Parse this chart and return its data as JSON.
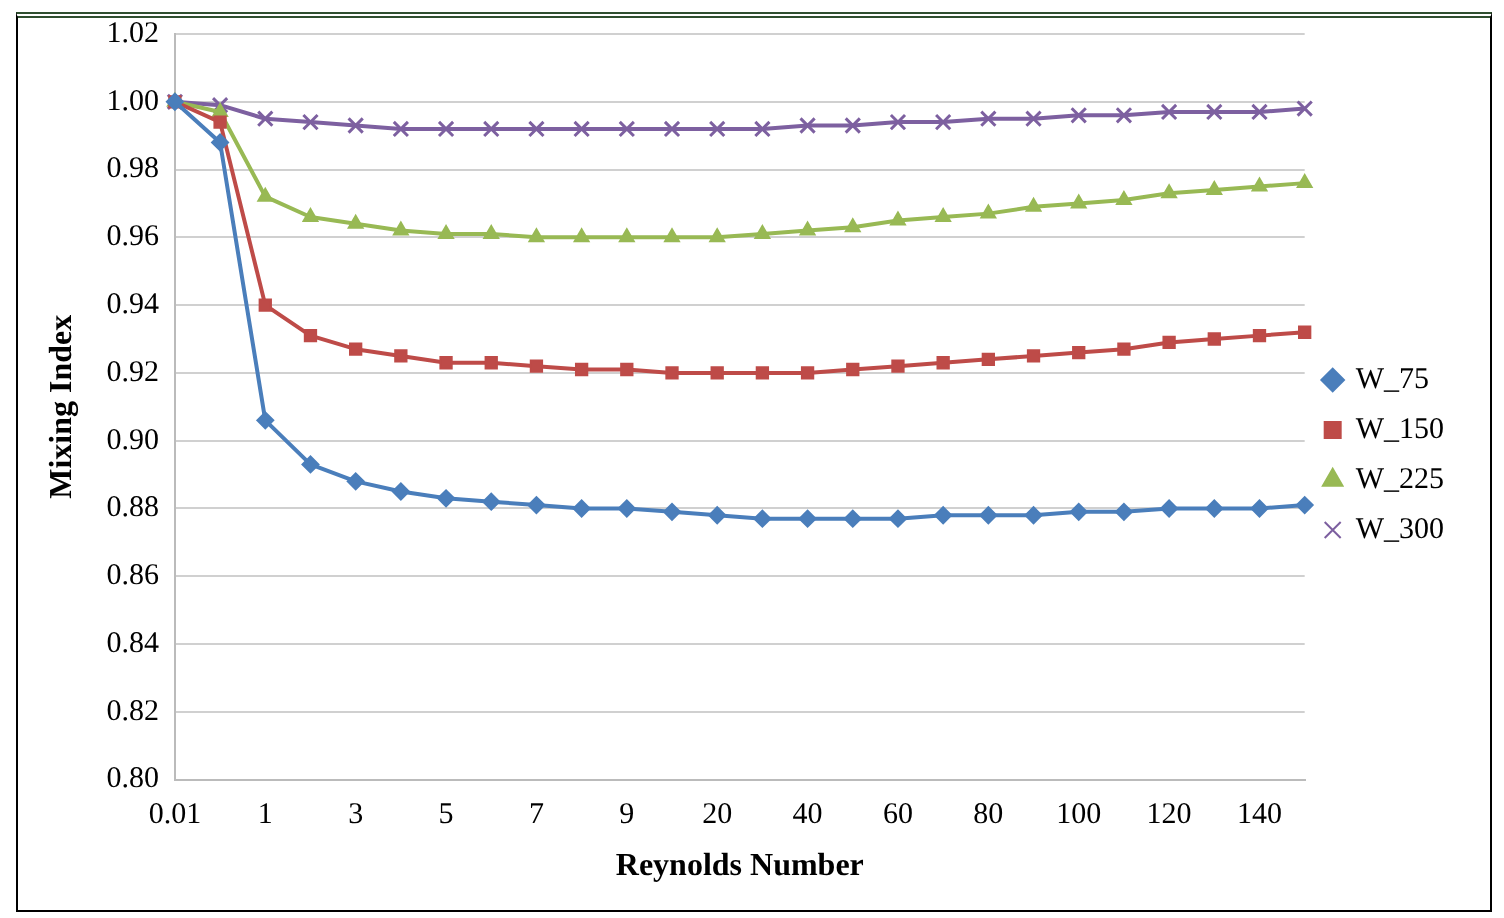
{
  "chart_data": {
    "type": "line",
    "xlabel": "Reynolds Number",
    "ylabel": "Mixing Index",
    "categories": [
      "0.01",
      null,
      "1",
      null,
      "3",
      null,
      "5",
      null,
      "7",
      null,
      "9",
      null,
      "20",
      null,
      "40",
      null,
      "60",
      null,
      "80",
      null,
      "100",
      null,
      "120",
      null,
      "140",
      null
    ],
    "series": [
      {
        "name": "W_75",
        "color": "#4a7ebb",
        "marker": "diamond",
        "values": [
          1.0,
          0.988,
          0.906,
          0.893,
          0.888,
          0.885,
          0.883,
          0.882,
          0.881,
          0.88,
          0.88,
          0.879,
          0.878,
          0.877,
          0.877,
          0.877,
          0.877,
          0.878,
          0.878,
          0.878,
          0.879,
          0.879,
          0.88,
          0.88,
          0.88,
          0.881
        ]
      },
      {
        "name": "W_150",
        "color": "#be4b48",
        "marker": "square",
        "values": [
          1.0,
          0.994,
          0.94,
          0.931,
          0.927,
          0.925,
          0.923,
          0.923,
          0.922,
          0.921,
          0.921,
          0.92,
          0.92,
          0.92,
          0.92,
          0.921,
          0.922,
          0.923,
          0.924,
          0.925,
          0.926,
          0.927,
          0.929,
          0.93,
          0.931,
          0.932
        ]
      },
      {
        "name": "W_225",
        "color": "#98b954",
        "marker": "triangle",
        "values": [
          1.0,
          0.997,
          0.972,
          0.966,
          0.964,
          0.962,
          0.961,
          0.961,
          0.96,
          0.96,
          0.96,
          0.96,
          0.96,
          0.961,
          0.962,
          0.963,
          0.965,
          0.966,
          0.967,
          0.969,
          0.97,
          0.971,
          0.973,
          0.974,
          0.975,
          0.976
        ]
      },
      {
        "name": "W_300",
        "color": "#7d60a0",
        "marker": "cross",
        "values": [
          1.0,
          0.999,
          0.995,
          0.994,
          0.993,
          0.992,
          0.992,
          0.992,
          0.992,
          0.992,
          0.992,
          0.992,
          0.992,
          0.992,
          0.993,
          0.993,
          0.994,
          0.994,
          0.995,
          0.995,
          0.996,
          0.996,
          0.997,
          0.997,
          0.997,
          0.998
        ]
      }
    ],
    "ylim": [
      0.8,
      1.02
    ],
    "yticks": [
      {
        "value": 0.8,
        "label": "0.80"
      },
      {
        "value": 0.82,
        "label": "0.82"
      },
      {
        "value": 0.84,
        "label": "0.84"
      },
      {
        "value": 0.86,
        "label": "0.86"
      },
      {
        "value": 0.88,
        "label": "0.88"
      },
      {
        "value": 0.9,
        "label": "0.90"
      },
      {
        "value": 0.92,
        "label": "0.92"
      },
      {
        "value": 0.94,
        "label": "0.94"
      },
      {
        "value": 0.96,
        "label": "0.96"
      },
      {
        "value": 0.98,
        "label": "0.98"
      },
      {
        "value": 1.0,
        "label": "1.00"
      },
      {
        "value": 1.02,
        "label": "1.02"
      }
    ],
    "grid": "y",
    "legend": "right",
    "line_style": "solid"
  }
}
